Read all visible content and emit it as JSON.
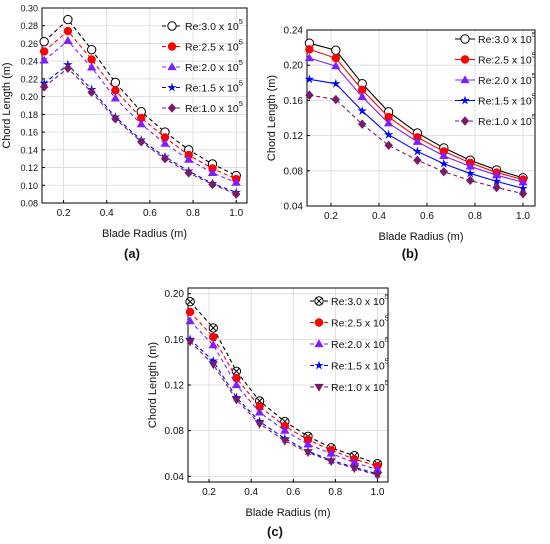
{
  "chart_data": [
    {
      "type": "line",
      "panel_label": "(a)",
      "xlabel": "Blade Radius (m)",
      "ylabel": "Chord Length (m)",
      "xlim": [
        0.1,
        1.05
      ],
      "ylim": [
        0.08,
        0.3
      ],
      "xticks": [
        "0.2",
        "0.4",
        "0.6",
        "0.8",
        "1.0"
      ],
      "yticks": [
        "0.08",
        "0.10",
        "0.12",
        "0.14",
        "0.16",
        "0.18",
        "0.20",
        "0.22",
        "0.24",
        "0.26",
        "0.28",
        "0.30"
      ],
      "grid": true,
      "legend_position": "top-right",
      "x": [
        0.11,
        0.22,
        0.33,
        0.44,
        0.56,
        0.67,
        0.78,
        0.89,
        1.0
      ],
      "series": [
        {
          "name": "Re:3.0 x 10",
          "sup": "5",
          "color": "#000000",
          "marker": "circle-open",
          "dash": "dashed",
          "values": [
            0.262,
            0.287,
            0.253,
            0.216,
            0.183,
            0.16,
            0.14,
            0.124,
            0.111
          ]
        },
        {
          "name": "Re:2.5 x 10",
          "sup": "5",
          "color": "#ff0000",
          "marker": "circle",
          "dash": "dashed",
          "values": [
            0.251,
            0.274,
            0.242,
            0.207,
            0.176,
            0.154,
            0.134,
            0.119,
            0.107
          ]
        },
        {
          "name": "Re:2.0 x 10",
          "sup": "5",
          "color": "#7f1fff",
          "marker": "triangle",
          "dash": "dashed",
          "values": [
            0.241,
            0.263,
            0.233,
            0.198,
            0.169,
            0.147,
            0.129,
            0.114,
            0.103
          ]
        },
        {
          "name": "Re:1.5 x 10",
          "sup": "5",
          "color": "#0000ff",
          "marker": "star",
          "dash": "dashed",
          "values": [
            0.215,
            0.236,
            0.208,
            0.177,
            0.151,
            0.132,
            0.116,
            0.102,
            0.092
          ]
        },
        {
          "name": "Re:1.0 x 10",
          "sup": "5",
          "color": "#7a1b6a",
          "marker": "diamond",
          "dash": "dashed",
          "values": [
            0.211,
            0.232,
            0.205,
            0.175,
            0.149,
            0.13,
            0.114,
            0.101,
            0.09
          ]
        }
      ]
    },
    {
      "type": "line",
      "panel_label": "(b)",
      "xlabel": "Blade Radius (m)",
      "ylabel": "Chord Length (m)",
      "xlim": [
        0.1,
        1.05
      ],
      "ylim": [
        0.04,
        0.24
      ],
      "xticks": [
        "0.2",
        "0.4",
        "0.6",
        "0.8",
        "1.0"
      ],
      "yticks": [
        "0.04",
        "0.08",
        "0.12",
        "0.16",
        "0.20",
        "0.24"
      ],
      "grid": true,
      "legend_position": "top-right",
      "x": [
        0.11,
        0.22,
        0.33,
        0.44,
        0.56,
        0.67,
        0.78,
        0.89,
        1.0
      ],
      "series": [
        {
          "name": "Re:3.0 x 10",
          "sup": "5",
          "color": "#000000",
          "marker": "circle-open",
          "dash": "solid",
          "values": [
            0.225,
            0.217,
            0.179,
            0.147,
            0.123,
            0.106,
            0.092,
            0.081,
            0.072
          ]
        },
        {
          "name": "Re:2.5 x 10",
          "sup": "5",
          "color": "#ff0000",
          "marker": "circle",
          "dash": "solid",
          "values": [
            0.218,
            0.208,
            0.172,
            0.141,
            0.118,
            0.102,
            0.089,
            0.078,
            0.07
          ]
        },
        {
          "name": "Re:2.0 x 10",
          "sup": "5",
          "color": "#7f1fff",
          "marker": "triangle",
          "dash": "solid",
          "values": [
            0.208,
            0.199,
            0.164,
            0.134,
            0.113,
            0.097,
            0.085,
            0.075,
            0.067
          ]
        },
        {
          "name": "Re:1.5 x 10",
          "sup": "5",
          "color": "#0000ff",
          "marker": "star",
          "dash": "solid",
          "values": [
            0.184,
            0.179,
            0.148,
            0.121,
            0.102,
            0.088,
            0.077,
            0.068,
            0.06
          ]
        },
        {
          "name": "Re:1.0 x 10",
          "sup": "5",
          "color": "#7a1b6a",
          "marker": "diamond",
          "dash": "dashed",
          "values": [
            0.166,
            0.161,
            0.133,
            0.109,
            0.092,
            0.079,
            0.069,
            0.061,
            0.054
          ]
        }
      ]
    },
    {
      "type": "line",
      "panel_label": "(c)",
      "xlabel": "Blade Radius (m)",
      "ylabel": "Chord Length (m)",
      "xlim": [
        0.1,
        1.05
      ],
      "ylim": [
        0.035,
        0.205
      ],
      "xticks": [
        "0.2",
        "0.4",
        "0.6",
        "0.8",
        "1.0"
      ],
      "yticks": [
        "0.04",
        "0.08",
        "0.12",
        "0.16",
        "0.20"
      ],
      "grid": true,
      "legend_position": "top-right",
      "x": [
        0.11,
        0.22,
        0.33,
        0.44,
        0.56,
        0.67,
        0.78,
        0.89,
        1.0
      ],
      "series": [
        {
          "name": "Re:3.0 x 10",
          "sup": "5",
          "color": "#000000",
          "marker": "circle-x",
          "dash": "dashed",
          "values": [
            0.193,
            0.17,
            0.132,
            0.106,
            0.088,
            0.075,
            0.065,
            0.058,
            0.051
          ]
        },
        {
          "name": "Re:2.5 x 10",
          "sup": "5",
          "color": "#ff0000",
          "marker": "circle",
          "dash": "dashed",
          "values": [
            0.184,
            0.162,
            0.126,
            0.101,
            0.084,
            0.072,
            0.063,
            0.055,
            0.049
          ]
        },
        {
          "name": "Re:2.0 x 10",
          "sup": "5",
          "color": "#7f1fff",
          "marker": "triangle",
          "dash": "dashed",
          "values": [
            0.176,
            0.155,
            0.12,
            0.096,
            0.08,
            0.068,
            0.06,
            0.052,
            0.046
          ]
        },
        {
          "name": "Re:1.5 x 10",
          "sup": "5",
          "color": "#0000ff",
          "marker": "star",
          "dash": "dashed",
          "values": [
            0.16,
            0.141,
            0.109,
            0.088,
            0.073,
            0.062,
            0.054,
            0.048,
            0.042
          ]
        },
        {
          "name": "Re:1.0 x 10",
          "sup": "5",
          "color": "#7a1b6a",
          "marker": "triangle-down",
          "dash": "dashed",
          "values": [
            0.158,
            0.138,
            0.107,
            0.086,
            0.071,
            0.061,
            0.053,
            0.047,
            0.041
          ]
        }
      ]
    }
  ]
}
